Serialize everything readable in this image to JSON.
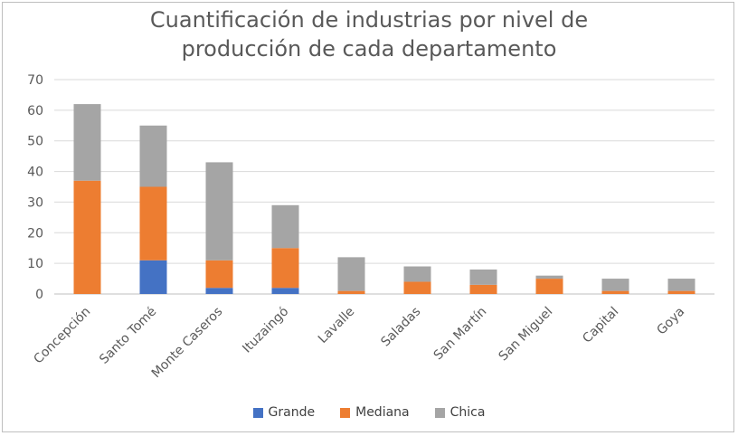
{
  "chart_data": {
    "type": "bar",
    "stacked": true,
    "title_lines": [
      "Cuantificación de industrias por nivel de",
      "producción de cada departamento"
    ],
    "categories": [
      "Concepción",
      "Santo Tomé",
      "Monte Caseros",
      "Ituzaingó",
      "Lavalle",
      "Saladas",
      "San Martín",
      "San Miguel",
      "Capital",
      "Goya"
    ],
    "series": [
      {
        "name": "Grande",
        "color": "#4472c4",
        "values": [
          0,
          11,
          2,
          2,
          0,
          0,
          0,
          0,
          0,
          0
        ]
      },
      {
        "name": "Mediana",
        "color": "#ed7d31",
        "values": [
          37,
          24,
          9,
          13,
          1,
          4,
          3,
          5,
          1,
          1
        ]
      },
      {
        "name": "Chica",
        "color": "#a5a5a5",
        "values": [
          25,
          20,
          32,
          14,
          11,
          5,
          5,
          1,
          4,
          4
        ]
      }
    ],
    "ylim": [
      0,
      70
    ],
    "yticks": [
      0,
      10,
      20,
      30,
      40,
      50,
      60,
      70
    ],
    "grid": true,
    "legend_position": "bottom"
  }
}
